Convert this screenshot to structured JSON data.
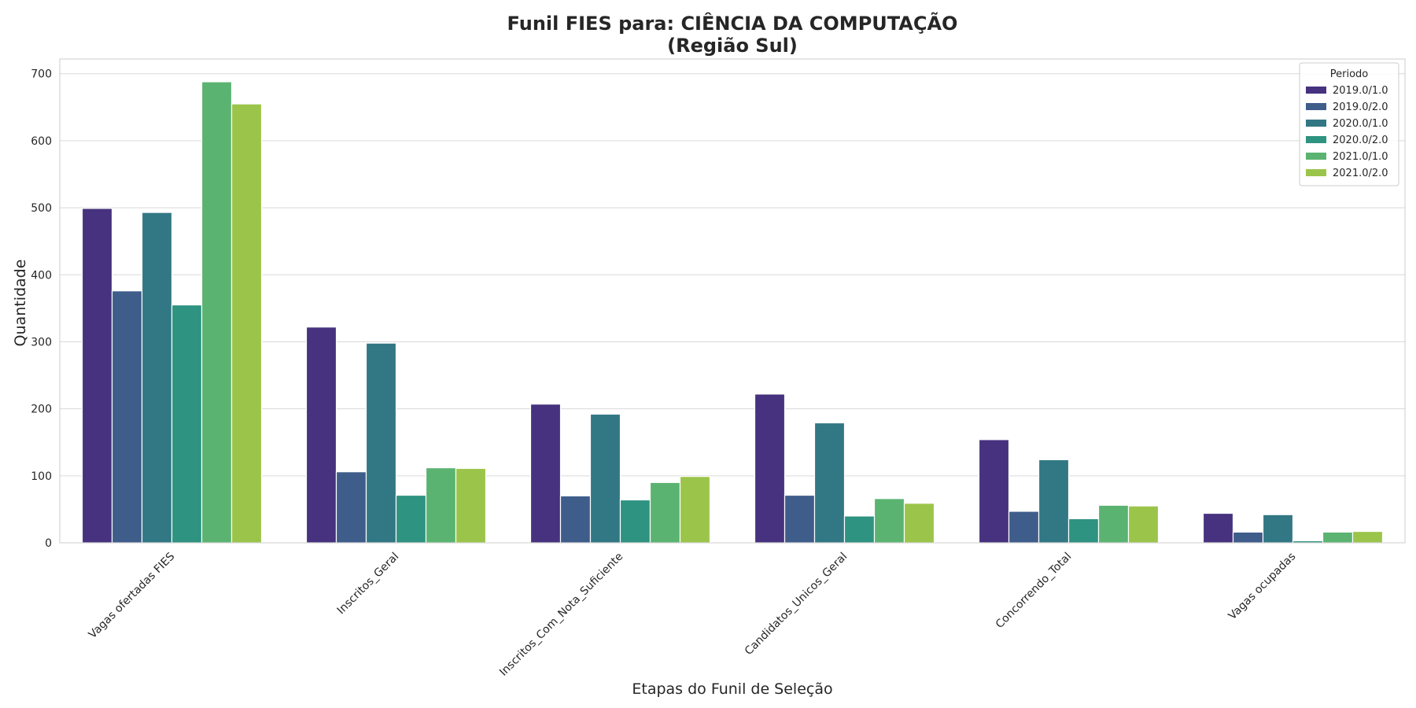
{
  "chart_data": {
    "type": "bar",
    "title_line1": "Funil FIES para: CIÊNCIA DA COMPUTAÇÃO",
    "title_line2": "(Região Sul)",
    "xlabel": "Etapas do Funil de Seleção",
    "ylabel": "Quantidade",
    "ylim": [
      0,
      722
    ],
    "yticks": [
      0,
      100,
      200,
      300,
      400,
      500,
      600,
      700
    ],
    "grid": true,
    "legend_title": "Periodo",
    "legend_position": "top-right",
    "categories": [
      "Vagas ofertadas FIES",
      "Inscritos_Geral",
      "Inscritos_Com_Nota_Suficiente",
      "Candidatos_Unicos_Geral",
      "Concorrendo_Total",
      "Vagas ocupadas"
    ],
    "series": [
      {
        "name": "2019.0/1.0",
        "color": "#46327e",
        "values": [
          499,
          322,
          207,
          222,
          154,
          44
        ]
      },
      {
        "name": "2019.0/2.0",
        "color": "#3f5d8a",
        "values": [
          376,
          106,
          70,
          71,
          47,
          16
        ]
      },
      {
        "name": "2020.0/1.0",
        "color": "#327784",
        "values": [
          493,
          298,
          192,
          179,
          124,
          42
        ]
      },
      {
        "name": "2020.0/2.0",
        "color": "#2e9380",
        "values": [
          355,
          71,
          64,
          40,
          36,
          3
        ]
      },
      {
        "name": "2021.0/1.0",
        "color": "#5bb371",
        "values": [
          688,
          112,
          90,
          66,
          56,
          16
        ]
      },
      {
        "name": "2021.0/2.0",
        "color": "#9bc54a",
        "values": [
          655,
          111,
          99,
          59,
          55,
          17
        ]
      }
    ]
  }
}
